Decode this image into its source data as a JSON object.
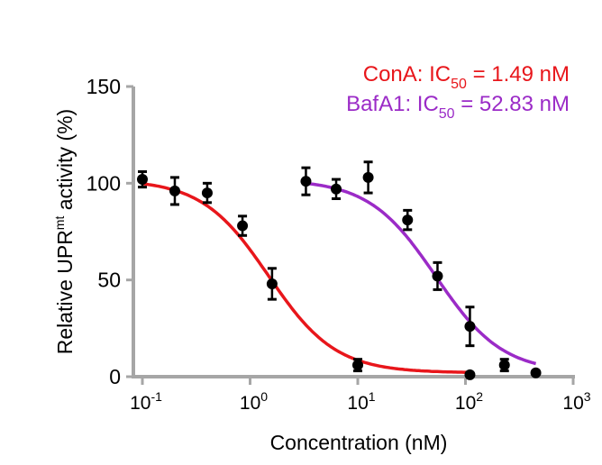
{
  "chart_data": {
    "type": "scatter",
    "xlabel": "Concentration (nM)",
    "ylabel": {
      "pre": "Relative UPR",
      "sup": "mt",
      "post": " activity (%)"
    },
    "xscale": "log",
    "xlim": [
      0.1,
      1000
    ],
    "ylim": [
      0,
      150
    ],
    "x_ticks": [
      {
        "base": "10",
        "exp": "-1",
        "value": 0.1
      },
      {
        "base": "10",
        "exp": "0",
        "value": 1
      },
      {
        "base": "10",
        "exp": "1",
        "value": 10
      },
      {
        "base": "10",
        "exp": "2",
        "value": 100
      },
      {
        "base": "10",
        "exp": "3",
        "value": 1000
      }
    ],
    "y_ticks": [
      {
        "label": "0",
        "value": 0
      },
      {
        "label": "50",
        "value": 50
      },
      {
        "label": "100",
        "value": 100
      },
      {
        "label": "150",
        "value": 150
      }
    ],
    "grid": false,
    "legend_position": "top-right",
    "series": [
      {
        "name": "ConA",
        "color": "#e8161b",
        "ic50": 1.49,
        "legend": {
          "prefix": "ConA: IC",
          "sub": "50",
          "suffix": " = 1.49 nM"
        },
        "fit": {
          "top": 102,
          "bottom": 2,
          "hill": 1.4,
          "x_range": [
            0.1,
            110
          ]
        },
        "points": [
          {
            "x": 0.1,
            "y": 102,
            "err": 4
          },
          {
            "x": 0.2,
            "y": 96,
            "err": 7
          },
          {
            "x": 0.4,
            "y": 95,
            "err": 5
          },
          {
            "x": 0.85,
            "y": 78,
            "err": 5
          },
          {
            "x": 1.6,
            "y": 48,
            "err": 8
          },
          {
            "x": 10,
            "y": 6,
            "err": 3
          },
          {
            "x": 110,
            "y": 1,
            "err": 0
          }
        ]
      },
      {
        "name": "BafA1",
        "color": "#9b2bc7",
        "ic50": 52.83,
        "legend": {
          "prefix": "BafA1: IC",
          "sub": "50",
          "suffix": " = 52.83 nM"
        },
        "fit": {
          "top": 102,
          "bottom": 2,
          "hill": 1.4,
          "x_range": [
            3.3,
            450
          ]
        },
        "points": [
          {
            "x": 3.3,
            "y": 101,
            "err": 7
          },
          {
            "x": 6.3,
            "y": 97,
            "err": 5
          },
          {
            "x": 12.5,
            "y": 103,
            "err": 8
          },
          {
            "x": 29,
            "y": 81,
            "err": 5
          },
          {
            "x": 55,
            "y": 52,
            "err": 7
          },
          {
            "x": 110,
            "y": 26,
            "err": 10
          },
          {
            "x": 230,
            "y": 6,
            "err": 3
          },
          {
            "x": 450,
            "y": 2,
            "err": 0
          }
        ]
      }
    ]
  }
}
